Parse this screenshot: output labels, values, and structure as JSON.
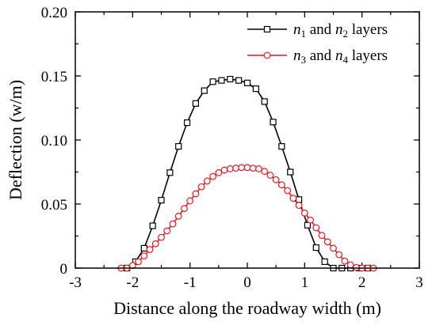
{
  "chart_data": {
    "type": "line",
    "xlabel": "Distance along the roadway width (m)",
    "ylabel": "Deflection (w/m)",
    "xlim": [
      -3,
      3
    ],
    "ylim": [
      0,
      0.2
    ],
    "xticks": [
      -3,
      -2,
      -1,
      0,
      1,
      2,
      3
    ],
    "xtick_labels": [
      "-3",
      "-2",
      "-1",
      "0",
      "1",
      "2",
      "3"
    ],
    "yticks": [
      0,
      0.05,
      0.1,
      0.15,
      0.2
    ],
    "ytick_labels": [
      "0",
      "0.05",
      "0.10",
      "0.15",
      "0.20"
    ],
    "grid": false,
    "legend_position": "top-right",
    "series": [
      {
        "name_parts": {
          "a": "n",
          "a_sub": "1",
          "mid": " and ",
          "b": "n",
          "b_sub": "2",
          "tail": " layers"
        },
        "color": "#000000",
        "marker": "square",
        "x": [
          -2.1,
          -1.95,
          -1.8,
          -1.65,
          -1.5,
          -1.35,
          -1.2,
          -1.05,
          -0.9,
          -0.75,
          -0.6,
          -0.45,
          -0.3,
          -0.15,
          0.0,
          0.15,
          0.3,
          0.45,
          0.6,
          0.75,
          0.9,
          1.05,
          1.2,
          1.35,
          1.5,
          1.65,
          1.8,
          1.95,
          2.1
        ],
        "y": [
          0.0,
          0.005,
          0.0155,
          0.033,
          0.053,
          0.0745,
          0.095,
          0.1135,
          0.1285,
          0.1385,
          0.1455,
          0.1465,
          0.1475,
          0.1465,
          0.1445,
          0.14,
          0.13,
          0.114,
          0.095,
          0.075,
          0.0535,
          0.0335,
          0.016,
          0.005,
          0.0,
          0.0,
          0.0,
          0.0,
          0.0
        ]
      },
      {
        "name_parts": {
          "a": "n",
          "a_sub": "3",
          "mid": " and ",
          "b": "n",
          "b_sub": "4",
          "tail": " layers"
        },
        "color": "#e8161e",
        "marker": "circle",
        "x": [
          -2.2,
          -2.1,
          -2.0,
          -1.9,
          -1.8,
          -1.7,
          -1.6,
          -1.5,
          -1.4,
          -1.3,
          -1.2,
          -1.1,
          -1.0,
          -0.9,
          -0.8,
          -0.7,
          -0.6,
          -0.5,
          -0.4,
          -0.3,
          -0.2,
          -0.1,
          0.0,
          0.1,
          0.2,
          0.3,
          0.4,
          0.5,
          0.6,
          0.7,
          0.8,
          0.9,
          1.0,
          1.1,
          1.2,
          1.3,
          1.4,
          1.5,
          1.6,
          1.7,
          1.8,
          1.9,
          2.0,
          2.1,
          2.2
        ],
        "y": [
          0.0,
          0.0,
          0.002,
          0.005,
          0.0095,
          0.0145,
          0.019,
          0.024,
          0.029,
          0.0345,
          0.0405,
          0.0465,
          0.0525,
          0.058,
          0.0635,
          0.068,
          0.0715,
          0.0745,
          0.0765,
          0.0775,
          0.078,
          0.0785,
          0.0785,
          0.078,
          0.0775,
          0.0755,
          0.0725,
          0.069,
          0.065,
          0.0605,
          0.0545,
          0.049,
          0.043,
          0.0375,
          0.0315,
          0.0255,
          0.0205,
          0.0155,
          0.0105,
          0.0055,
          0.0025,
          0.0005,
          0.0,
          0.0,
          0.0
        ]
      }
    ]
  }
}
